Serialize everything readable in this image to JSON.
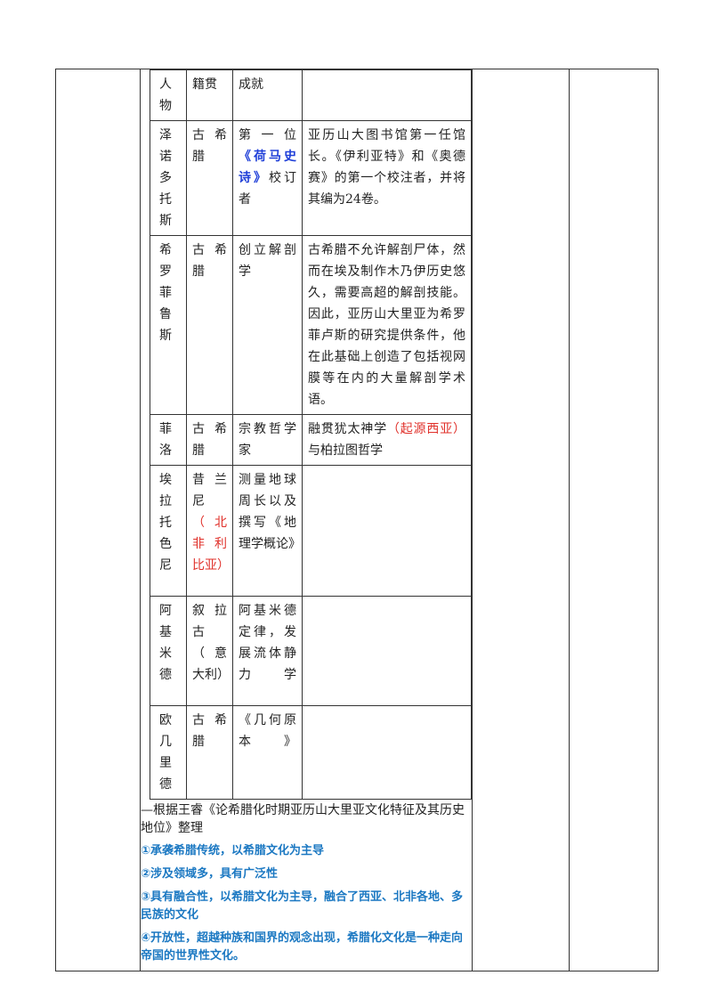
{
  "table": {
    "rows": [
      [
        "人物",
        "籍贯",
        "成就"
      ],
      [
        "泽诺多托斯",
        "古希腊",
        [
          {
            "text": "第一位"
          },
          {
            "text": "《荷马史诗》",
            "color": "#1f3fd8",
            "bold": true
          },
          {
            "text": "校订者"
          }
        ],
        "亚历山大图书馆第一任馆长。《伊利亚特》和《奥德赛》的第一个校注者，并将其编为24卷。"
      ],
      [
        "希罗菲鲁斯",
        "古希腊",
        "创立解剖学",
        "古希腊不允许解剖尸体，然而在埃及制作木乃伊历史悠久，需要高超的解剖技能。因此，亚历山大里亚为希罗菲卢斯的研究提供条件，他在此基础上创造了包括视网膜等在内的大量解剖学术语。"
      ],
      [
        "菲洛",
        "古希腊",
        "宗教哲学家",
        [
          {
            "text": "融贯犹太神学"
          },
          {
            "text": "（起源西亚）",
            "color": "#e0302a"
          },
          {
            "text": "与柏拉图哲学"
          }
        ]
      ],
      [
        "埃拉托色尼",
        [
          {
            "text": "昔兰尼"
          },
          {
            "text": "（北非利比亚）",
            "color": "#e0302a"
          }
        ],
        "测量地球周长以及撰写《地理学概论》"
      ],
      [
        "阿基米德",
        "叙拉古（意大利）",
        "阿基米德定律，发展流体静力学"
      ],
      [
        "欧几里德",
        "古希腊",
        "《几何原本》"
      ]
    ]
  },
  "notes": {
    "source": "—根据王睿《论希腊化时期亚历山大里亚文化特征及其历史地位》整理",
    "points_color": "#1b78c2",
    "points": [
      "①承袭希腊传统，以希腊文化为主导",
      "②涉及领域多，具有广泛性",
      "③具有融合性，以希腊文化为主导，融合了西亚、北非各地、多民族的文化",
      "④开放性，超越种族和国界的观念出现，希腊化文化是一种走向帝国的世界性文化。"
    ]
  }
}
